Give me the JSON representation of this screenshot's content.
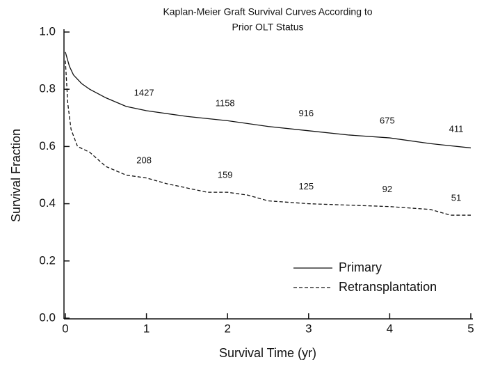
{
  "chart_data": {
    "type": "line",
    "title": [
      "Kaplan-Meier Graft Survival Curves According to",
      "Prior OLT Status"
    ],
    "x_label": "Survival Time (yr)",
    "y_label": "Survival Fraction",
    "xlim": [
      0,
      5
    ],
    "ylim": [
      0,
      1
    ],
    "xticks": [
      0,
      1,
      2,
      3,
      4,
      5
    ],
    "yticks": [
      {
        "value": 0,
        "label": "0.0"
      },
      {
        "value": 0.2,
        "label": "0.2"
      },
      {
        "value": 0.4,
        "label": "0.4"
      },
      {
        "value": 0.6,
        "label": "0.6"
      },
      {
        "value": 0.8,
        "label": "0.8"
      },
      {
        "value": 1,
        "label": "1.0"
      }
    ],
    "legend": "lower right",
    "series": [
      {
        "name": "Primary",
        "color": "#111111",
        "linestyle": "solid",
        "x": [
          0,
          0.05,
          0.1,
          0.2,
          0.3,
          0.5,
          0.75,
          1,
          1.5,
          2,
          2.5,
          3,
          3.5,
          4,
          4.5,
          5
        ],
        "values": [
          0.93,
          0.88,
          0.85,
          0.82,
          0.8,
          0.77,
          0.74,
          0.725,
          0.705,
          0.69,
          0.67,
          0.655,
          0.64,
          0.63,
          0.61,
          0.595
        ],
        "at_risk": [
          1427,
          1158,
          916,
          675,
          411
        ]
      },
      {
        "name": "Retransplantation",
        "color": "#111111",
        "linestyle": "dashed",
        "x": [
          0,
          0.03,
          0.07,
          0.15,
          0.3,
          0.5,
          0.75,
          1,
          1.25,
          1.5,
          1.75,
          2,
          2.25,
          2.5,
          3,
          3.5,
          4,
          4.5,
          4.75,
          5
        ],
        "values": [
          0.9,
          0.75,
          0.66,
          0.6,
          0.58,
          0.53,
          0.5,
          0.49,
          0.47,
          0.455,
          0.44,
          0.44,
          0.43,
          0.41,
          0.4,
          0.395,
          0.39,
          0.38,
          0.36,
          0.36
        ],
        "at_risk": [
          208,
          159,
          125,
          92,
          51
        ]
      }
    ]
  }
}
